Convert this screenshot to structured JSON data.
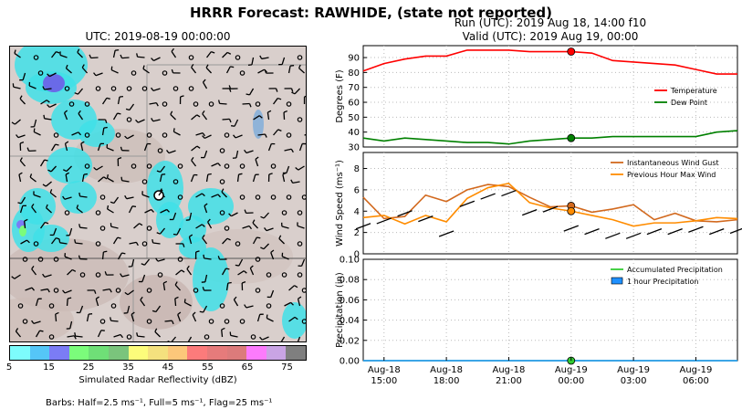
{
  "header": {
    "title": "HRRR Forecast: RAWHIDE, (state not reported)",
    "map_time": "UTC: 2019-08-19 00:00:00",
    "run": "Run (UTC): 2019 Aug 18, 14:00 f10",
    "valid": "Valid (UTC): 2019 Aug 19, 00:00"
  },
  "map": {
    "colorbar": {
      "label": "Simulated Radar Reflectivity (dBZ)",
      "ticks": [
        "5",
        "15",
        "25",
        "35",
        "45",
        "55",
        "65",
        "75"
      ],
      "colors": [
        "#7dfcfc",
        "#55c6f7",
        "#7b7cf5",
        "#7bfc7b",
        "#6fdf77",
        "#7ac47c",
        "#fcfc7b",
        "#f4e17e",
        "#fcc77a",
        "#fc7b7b",
        "#e67b7b",
        "#dc7b7b",
        "#fc7bfc",
        "#c9a4e4",
        "#7f7f7f"
      ]
    },
    "barb_note": "Barbs: Half=2.5 ms⁻¹, Full=5 ms⁻¹, Flag=25 ms⁻¹"
  },
  "chart_data": [
    {
      "type": "line",
      "ylabel": "Degrees (F)",
      "ylim": [
        30,
        98
      ],
      "yticks": [
        30,
        40,
        50,
        60,
        70,
        80,
        90
      ],
      "grid": true,
      "legend_position": "right",
      "x": [
        "2019-08-18 14:00",
        "2019-08-18 15:00",
        "2019-08-18 16:00",
        "2019-08-18 17:00",
        "2019-08-18 18:00",
        "2019-08-18 19:00",
        "2019-08-18 20:00",
        "2019-08-18 21:00",
        "2019-08-18 22:00",
        "2019-08-18 23:00",
        "2019-08-19 00:00",
        "2019-08-19 01:00",
        "2019-08-19 02:00",
        "2019-08-19 03:00",
        "2019-08-19 04:00",
        "2019-08-19 05:00",
        "2019-08-19 06:00",
        "2019-08-19 07:00",
        "2019-08-19 08:00"
      ],
      "series": [
        {
          "name": "Temperature",
          "color": "#ff0000",
          "values": [
            81,
            86,
            89,
            91,
            91,
            95,
            95,
            95,
            94,
            94,
            94,
            93,
            88,
            87,
            86,
            85,
            82,
            79,
            79
          ]
        },
        {
          "name": "Dew Point",
          "color": "#008000",
          "values": [
            36,
            34,
            36,
            35,
            34,
            33,
            33,
            32,
            34,
            35,
            36,
            36,
            37,
            37,
            37,
            37,
            37,
            40,
            41
          ]
        }
      ],
      "markers": [
        {
          "x": "2019-08-19 00:00",
          "y": 94,
          "color": "#ff0000"
        },
        {
          "x": "2019-08-19 00:00",
          "y": 36,
          "color": "#008000"
        }
      ]
    },
    {
      "type": "line",
      "ylabel": "Wind Speed (ms⁻¹)",
      "ylim": [
        0,
        9.5
      ],
      "yticks": [
        0,
        2,
        4,
        6,
        8
      ],
      "grid": true,
      "legend_position": "top-right",
      "x": [
        "2019-08-18 14:00",
        "2019-08-18 15:00",
        "2019-08-18 16:00",
        "2019-08-18 17:00",
        "2019-08-18 18:00",
        "2019-08-18 19:00",
        "2019-08-18 20:00",
        "2019-08-18 21:00",
        "2019-08-18 22:00",
        "2019-08-18 23:00",
        "2019-08-19 00:00",
        "2019-08-19 01:00",
        "2019-08-19 02:00",
        "2019-08-19 03:00",
        "2019-08-19 04:00",
        "2019-08-19 05:00",
        "2019-08-19 06:00",
        "2019-08-19 07:00",
        "2019-08-19 08:00"
      ],
      "series": [
        {
          "name": "Instantaneous Wind Gust",
          "color": "#d2691e",
          "values": [
            5.3,
            3.3,
            3.5,
            5.5,
            4.9,
            6.0,
            6.5,
            6.3,
            5.3,
            4.4,
            4.5,
            3.9,
            4.2,
            4.6,
            3.2,
            3.8,
            3.1,
            3.0,
            3.2
          ]
        },
        {
          "name": "Previous Hour Max Wind",
          "color": "#ff8c00",
          "values": [
            3.4,
            3.6,
            2.8,
            3.6,
            3.0,
            5.2,
            6.2,
            6.6,
            4.8,
            4.3,
            4.0,
            3.6,
            3.2,
            2.6,
            2.9,
            2.9,
            3.1,
            3.4,
            3.3
          ]
        }
      ],
      "markers": [
        {
          "x": "2019-08-19 00:00",
          "y": 4.5,
          "color": "#d2691e"
        },
        {
          "x": "2019-08-19 00:00",
          "y": 4.0,
          "color": "#ff8c00"
        }
      ]
    },
    {
      "type": "line",
      "ylabel": "Precipitation (in)",
      "ylim": [
        0,
        0.1
      ],
      "yticks": [
        "0.00",
        "0.02",
        "0.04",
        "0.06",
        "0.08",
        "0.10"
      ],
      "grid": true,
      "legend_position": "top-right",
      "x": [
        "2019-08-18 14:00",
        "2019-08-18 15:00",
        "2019-08-18 16:00",
        "2019-08-18 17:00",
        "2019-08-18 18:00",
        "2019-08-18 19:00",
        "2019-08-18 20:00",
        "2019-08-18 21:00",
        "2019-08-18 22:00",
        "2019-08-18 23:00",
        "2019-08-19 00:00",
        "2019-08-19 01:00",
        "2019-08-19 02:00",
        "2019-08-19 03:00",
        "2019-08-19 04:00",
        "2019-08-19 05:00",
        "2019-08-19 06:00",
        "2019-08-19 07:00",
        "2019-08-19 08:00"
      ],
      "series": [
        {
          "name": "Accumulated Precipitation",
          "color": "#33cc33",
          "values": [
            0,
            0,
            0,
            0,
            0,
            0,
            0,
            0,
            0,
            0,
            0,
            0,
            0,
            0,
            0,
            0,
            0,
            0,
            0
          ]
        },
        {
          "name": "1 hour Precipitation",
          "color": "#1e90ff",
          "values": [
            0,
            0,
            0,
            0,
            0,
            0,
            0,
            0,
            0,
            0,
            0,
            0,
            0,
            0,
            0,
            0,
            0,
            0,
            0
          ]
        }
      ],
      "markers": [
        {
          "x": "2019-08-19 00:00",
          "y": 0,
          "color": "#33cc33"
        }
      ],
      "xtick_labels": [
        {
          "x": "2019-08-18 15:00",
          "line1": "Aug-18",
          "line2": "15:00"
        },
        {
          "x": "2019-08-18 18:00",
          "line1": "Aug-18",
          "line2": "18:00"
        },
        {
          "x": "2019-08-18 21:00",
          "line1": "Aug-18",
          "line2": "21:00"
        },
        {
          "x": "2019-08-19 00:00",
          "line1": "Aug-19",
          "line2": "00:00"
        },
        {
          "x": "2019-08-19 03:00",
          "line1": "Aug-19",
          "line2": "03:00"
        },
        {
          "x": "2019-08-19 06:00",
          "line1": "Aug-19",
          "line2": "06:00"
        }
      ]
    }
  ]
}
